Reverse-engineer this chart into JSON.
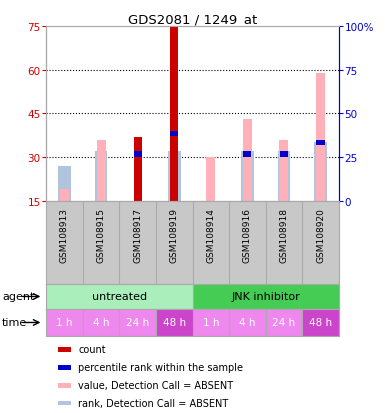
{
  "title": "GDS2081 / 1249_at",
  "samples": [
    "GSM108913",
    "GSM108915",
    "GSM108917",
    "GSM108919",
    "GSM108914",
    "GSM108916",
    "GSM108918",
    "GSM108920"
  ],
  "left_ylim": [
    15,
    75
  ],
  "left_yticks": [
    15,
    30,
    45,
    60,
    75
  ],
  "right_ylim": [
    0,
    100
  ],
  "right_yticks": [
    0,
    25,
    50,
    75,
    100
  ],
  "right_yticklabels": [
    "0",
    "25",
    "50",
    "75",
    "100%"
  ],
  "count_values": [
    0,
    0,
    37,
    75,
    0,
    0,
    0,
    0
  ],
  "count_color": "#cc0000",
  "rank_values": [
    0,
    0,
    31,
    38,
    0,
    31,
    31,
    35
  ],
  "rank_color": "#0000cc",
  "absent_value_bars": [
    19,
    36,
    0,
    0,
    30,
    43,
    36,
    59
  ],
  "absent_value_color": "#ffb0b8",
  "absent_rank_bars": [
    27,
    32,
    0,
    32,
    0,
    32,
    32,
    35
  ],
  "absent_rank_color": "#b0c4de",
  "agent_groups": [
    {
      "label": "untreated",
      "start": 0,
      "end": 4,
      "color": "#aaeebb"
    },
    {
      "label": "JNK inhibitor",
      "start": 4,
      "end": 8,
      "color": "#44cc55"
    }
  ],
  "time_labels": [
    "1 h",
    "4 h",
    "24 h",
    "48 h",
    "1 h",
    "4 h",
    "24 h",
    "48 h"
  ],
  "time_colors": [
    "#ee88ee",
    "#ee88ee",
    "#ee88ee",
    "#cc44cc",
    "#ee88ee",
    "#ee88ee",
    "#ee88ee",
    "#cc44cc"
  ],
  "bg_color": "#ffffff",
  "sample_bg_color": "#c8c8c8",
  "left_axis_color": "#cc0000",
  "right_axis_color": "#0000cc"
}
